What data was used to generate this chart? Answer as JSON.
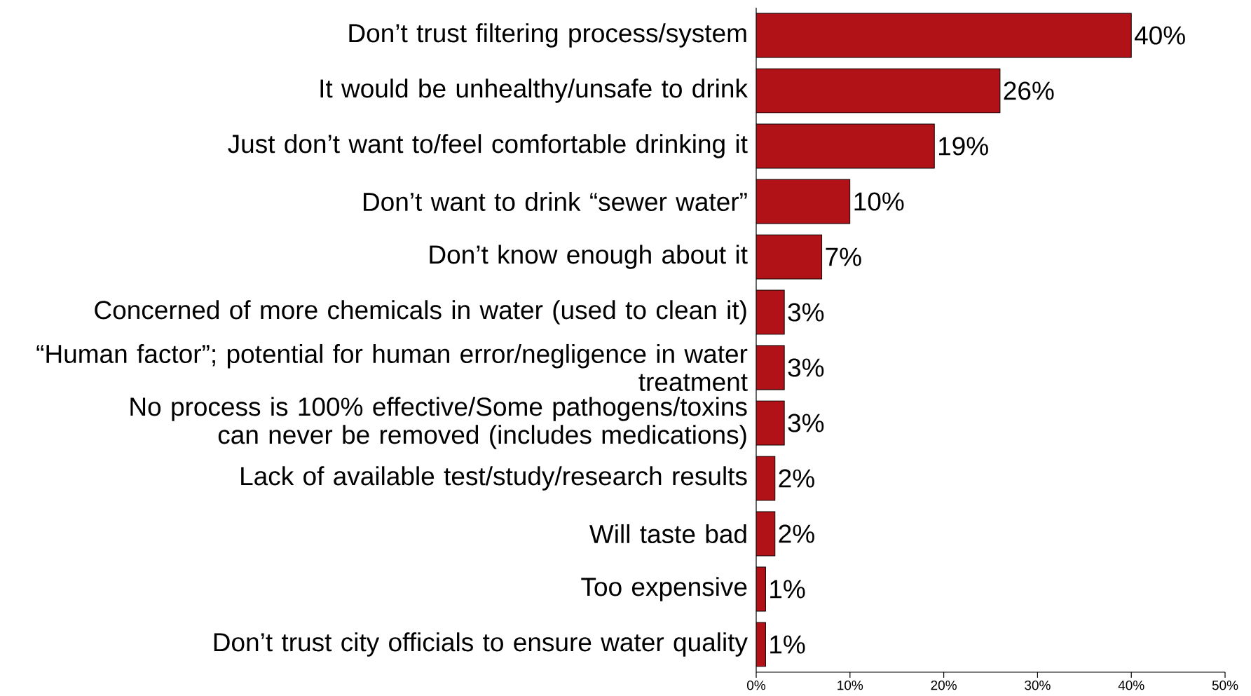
{
  "chart_data": {
    "type": "bar",
    "orientation": "horizontal",
    "categories": [
      "Don’t trust filtering process/system",
      "It would be unhealthy/unsafe to drink",
      "Just don’t want to/feel comfortable drinking it",
      "Don’t want to drink “sewer water”",
      "Don’t know enough about it",
      "Concerned of more chemicals in water (used to clean it)",
      "“Human factor”; potential for human error/negligence in water treatment",
      "No process is 100% effective/Some pathogens/toxins can never be removed (includes medications)",
      "Lack of available test/study/research results",
      "Will taste bad",
      "Too expensive",
      "Don’t trust city officials to ensure water quality"
    ],
    "values": [
      40,
      26,
      19,
      10,
      7,
      3,
      3,
      3,
      2,
      2,
      1,
      1
    ],
    "value_labels": [
      "40%",
      "26%",
      "19%",
      "10%",
      "7%",
      "3%",
      "3%",
      "3%",
      "2%",
      "2%",
      "1%",
      "1%"
    ],
    "color": "#b01218",
    "xlim": [
      0,
      50
    ],
    "xticks": [
      {
        "value": 0,
        "label": "0%"
      },
      {
        "value": 10,
        "label": "10%"
      },
      {
        "value": 20,
        "label": "20%"
      },
      {
        "value": 30,
        "label": "30%"
      },
      {
        "value": 40,
        "label": "40%"
      },
      {
        "value": 50,
        "label": "50%"
      }
    ],
    "grid": false
  }
}
